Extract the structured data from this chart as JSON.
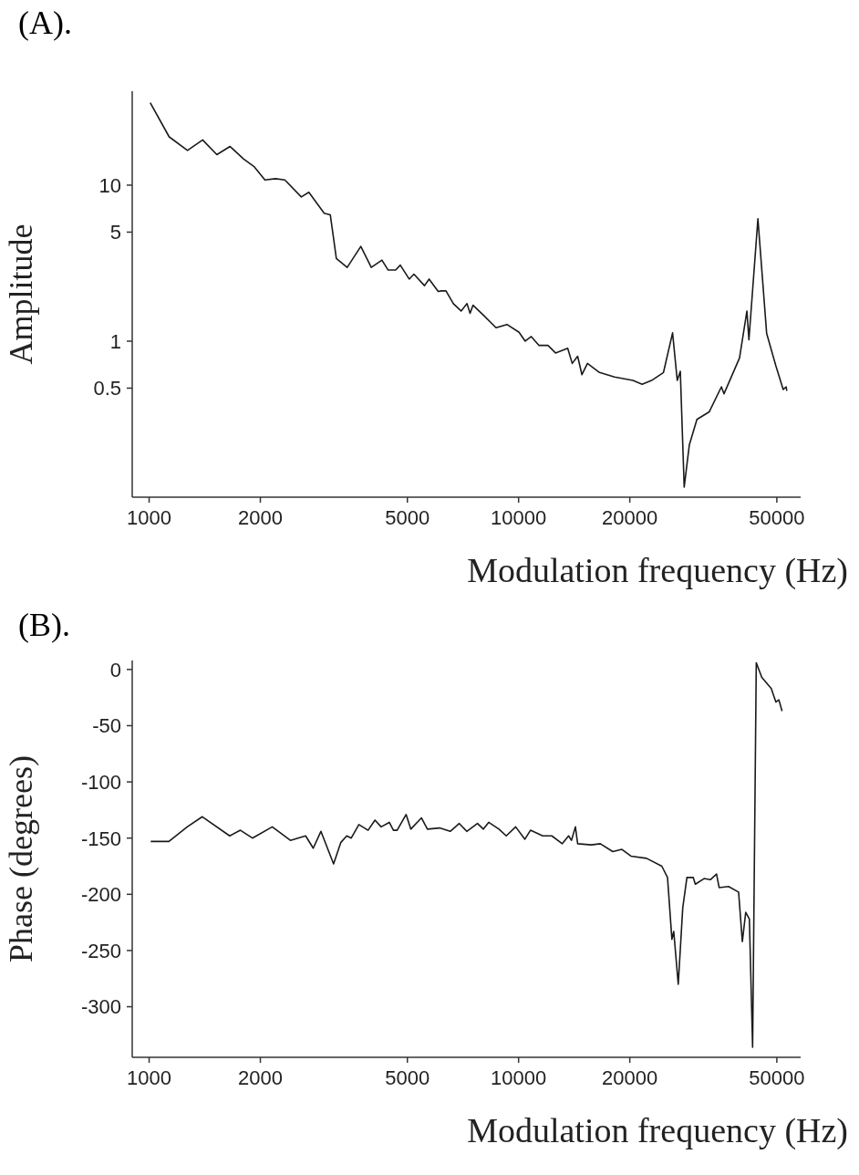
{
  "chart_data": [
    {
      "type": "line",
      "title": "(A).",
      "xlabel": "Modulation frequency (Hz)",
      "ylabel": "Amplitude",
      "log": "xy",
      "xlim": [
        900,
        58000
      ],
      "ylim": [
        0.1,
        40
      ],
      "xticks": [
        1000,
        2000,
        5000,
        10000,
        20000,
        50000
      ],
      "yticks": [
        0.5,
        1,
        5,
        10
      ],
      "series": [
        {
          "color": "#1a1a1a",
          "x": [
            1007,
            1133,
            1270,
            1396,
            1525,
            1656,
            1803,
            1927,
            2058,
            2198,
            2330,
            2582,
            2706,
            2977,
            3093,
            3212,
            3436,
            3741,
            3993,
            4267,
            4432,
            4648,
            4784,
            5058,
            5208,
            5563,
            5725,
            6060,
            6180,
            6360,
            6660,
            6990,
            7250,
            7390,
            7530,
            8050,
            8690,
            9300,
            10030,
            10420,
            10820,
            11350,
            12010,
            12590,
            13580,
            13970,
            14450,
            14840,
            15360,
            16560,
            18180,
            20400,
            21600,
            22900,
            24670,
            26110,
            26880,
            27400,
            28070,
            28980,
            30390,
            32800,
            35400,
            35980,
            39630,
            41500,
            42020,
            44440,
            46930,
            49660,
            52030,
            53000,
            53200
          ],
          "values": [
            33.7,
            20.4,
            16.7,
            19.5,
            15.7,
            17.7,
            14.7,
            13.1,
            10.8,
            11.0,
            10.8,
            8.4,
            9.0,
            6.6,
            6.45,
            3.39,
            2.97,
            4.05,
            2.97,
            3.31,
            2.86,
            2.86,
            3.07,
            2.5,
            2.69,
            2.27,
            2.5,
            2.08,
            2.1,
            2.1,
            1.74,
            1.56,
            1.74,
            1.51,
            1.7,
            1.46,
            1.22,
            1.28,
            1.14,
            1.0,
            1.07,
            0.94,
            0.94,
            0.84,
            0.9,
            0.72,
            0.8,
            0.61,
            0.72,
            0.63,
            0.59,
            0.56,
            0.53,
            0.56,
            0.63,
            1.13,
            0.56,
            0.64,
            0.116,
            0.216,
            0.315,
            0.352,
            0.51,
            0.46,
            0.78,
            1.56,
            1.02,
            6.09,
            1.12,
            0.7,
            0.49,
            0.51,
            0.48
          ]
        }
      ]
    },
    {
      "type": "line",
      "title": "(B).",
      "xlabel": "Modulation frequency (Hz)",
      "ylabel": "Phase (degrees)",
      "log": "x",
      "xlim": [
        900,
        58000
      ],
      "ylim": [
        -345,
        8
      ],
      "xticks": [
        1000,
        2000,
        5000,
        10000,
        20000,
        50000
      ],
      "yticks": [
        0,
        -50,
        -100,
        -150,
        -200,
        -250,
        -300
      ],
      "series": [
        {
          "color": "#1a1a1a",
          "x": [
            1010,
            1131,
            1268,
            1393,
            1652,
            1766,
            1904,
            2154,
            2412,
            2652,
            2781,
            2917,
            3157,
            3301,
            3427,
            3524,
            3696,
            3914,
            4086,
            4246,
            4468,
            4584,
            4690,
            4960,
            5108,
            5460,
            5665,
            6110,
            6530,
            6910,
            7240,
            7740,
            8030,
            8300,
            8850,
            9260,
            9820,
            10400,
            10770,
            11620,
            12300,
            13130,
            13660,
            13900,
            14250,
            14450,
            15740,
            16640,
            17990,
            19040,
            20140,
            22200,
            24420,
            25300,
            26000,
            26300,
            27050,
            27820,
            28550,
            29690,
            30090,
            31770,
            33040,
            34340,
            34900,
            37000,
            39400,
            40330,
            41190,
            42140,
            43000,
            43990,
            45530,
            48300,
            49710,
            50640,
            51660
          ],
          "values": [
            -153,
            -153,
            -140,
            -131,
            -148,
            -143,
            -150,
            -140,
            -152,
            -148,
            -159,
            -144,
            -173,
            -154,
            -148,
            -150,
            -138,
            -143,
            -134,
            -140,
            -136,
            -143,
            -143,
            -129,
            -142,
            -132,
            -142,
            -141,
            -144,
            -137,
            -144,
            -137,
            -142,
            -136,
            -142,
            -148,
            -140,
            -151,
            -143,
            -148,
            -148,
            -155,
            -148,
            -152,
            -140,
            -155,
            -156,
            -155,
            -162,
            -160,
            -166,
            -168,
            -175,
            -185,
            -240,
            -233,
            -280,
            -212,
            -185,
            -185,
            -191,
            -186,
            -187,
            -182,
            -194,
            -193,
            -198,
            -242,
            -216,
            -222,
            -336,
            6,
            -7,
            -17,
            -29,
            -27,
            -37
          ]
        }
      ]
    }
  ]
}
